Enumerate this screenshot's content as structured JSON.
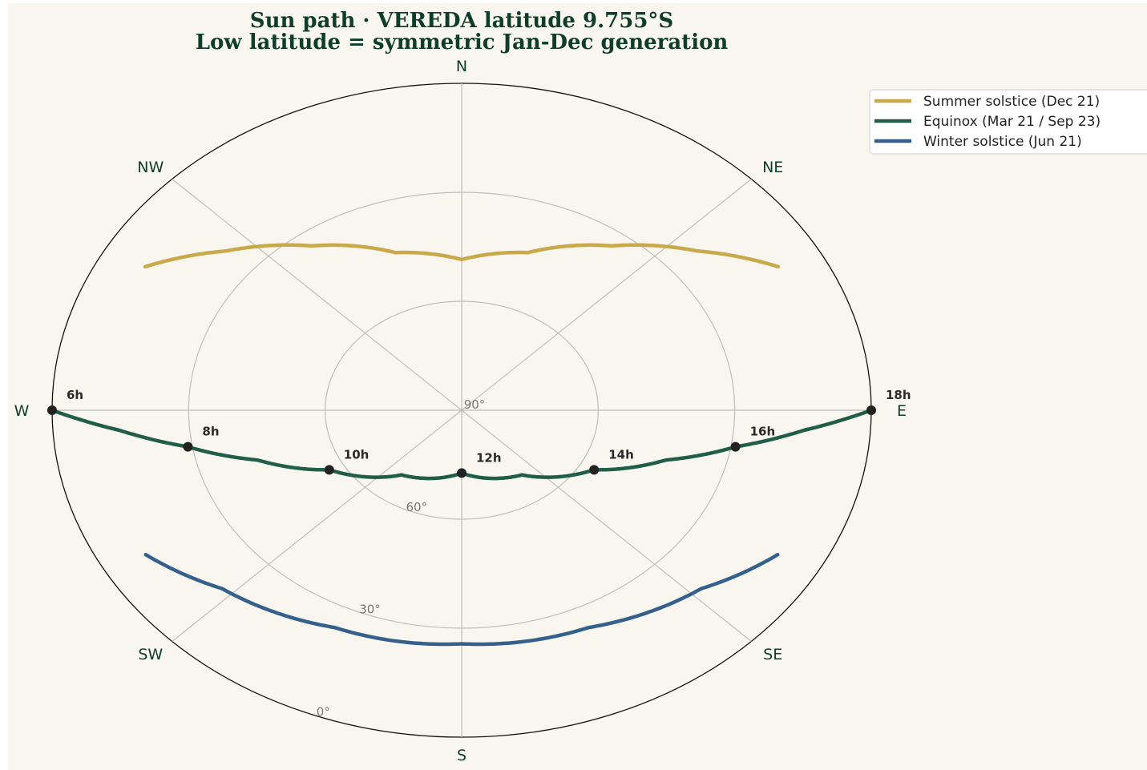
{
  "chart_data": {
    "type": "polar-sunpath",
    "title": "Sun path · VEREDA latitude 9.755°S",
    "subtitle": "Low latitude = symmetric Jan-Dec generation",
    "compass": [
      {
        "label": "N",
        "azimuth": 0
      },
      {
        "label": "NE",
        "azimuth": 45
      },
      {
        "label": "E",
        "azimuth": 90
      },
      {
        "label": "SE",
        "azimuth": 135
      },
      {
        "label": "S",
        "azimuth": 180
      },
      {
        "label": "SW",
        "azimuth": 225
      },
      {
        "label": "W",
        "azimuth": 270
      },
      {
        "label": "NW",
        "azimuth": 315
      }
    ],
    "radial_axis": {
      "quantity": "altitude",
      "range": [
        0,
        90
      ],
      "ticks": [
        {
          "value": 0,
          "label": "0°"
        },
        {
          "value": 30,
          "label": "30°"
        },
        {
          "value": 60,
          "label": "60°"
        },
        {
          "value": 90,
          "label": "90°"
        }
      ]
    },
    "legend": {
      "placement": "top-right"
    },
    "grid": true,
    "series": [
      {
        "name": "Summer solstice (Dec 21)",
        "color": "#c9a94a",
        "points": [
          {
            "az": 299.6,
            "alt": 10.0
          },
          {
            "az": 310.2,
            "alt": 22.1
          },
          {
            "az": 323.9,
            "alt": 34.0
          },
          {
            "az": 341.4,
            "alt": 44.2
          },
          {
            "az": 0.0,
            "alt": 48.5
          },
          {
            "az": 18.6,
            "alt": 44.2
          },
          {
            "az": 36.1,
            "alt": 34.0
          },
          {
            "az": 49.8,
            "alt": 22.1
          },
          {
            "az": 60.4,
            "alt": 10.0
          }
        ]
      },
      {
        "name": "Equinox (Mar 21 / Sep 23)",
        "color": "#205e4a",
        "points": [
          {
            "az": 270.0,
            "alt": 0.0
          },
          {
            "az": 265.8,
            "alt": 14.6
          },
          {
            "az": 260.5,
            "alt": 29.0
          },
          {
            "az": 253.0,
            "alt": 43.1
          },
          {
            "az": 240.6,
            "alt": 56.6
          },
          {
            "az": 216.7,
            "alt": 67.8
          },
          {
            "az": 180.0,
            "alt": 72.7
          },
          {
            "az": 143.3,
            "alt": 67.8
          },
          {
            "az": 119.4,
            "alt": 56.6
          },
          {
            "az": 107.0,
            "alt": 43.1
          },
          {
            "az": 99.5,
            "alt": 29.0
          },
          {
            "az": 94.2,
            "alt": 14.6
          },
          {
            "az": 90.0,
            "alt": 0.0
          }
        ],
        "hour_markers": [
          {
            "label": "6h",
            "az": 270.0,
            "alt": 0.0
          },
          {
            "label": "8h",
            "az": 260.5,
            "alt": 29.0
          },
          {
            "label": "10h",
            "az": 240.6,
            "alt": 56.6
          },
          {
            "label": "12h",
            "az": 180.0,
            "alt": 72.7
          },
          {
            "label": "14h",
            "az": 119.4,
            "alt": 56.6
          },
          {
            "label": "16h",
            "az": 99.5,
            "alt": 29.0
          },
          {
            "label": "18h",
            "az": 90.0,
            "alt": 0.0
          }
        ]
      },
      {
        "name": "Winter solstice (Jun 21)",
        "color": "#35608c",
        "points": [
          {
            "az": 240.2,
            "alt": 10.0
          },
          {
            "az": 227.0,
            "alt": 18.0
          },
          {
            "az": 205.0,
            "alt": 24.0
          },
          {
            "az": 180.0,
            "alt": 25.7
          },
          {
            "az": 155.0,
            "alt": 24.0
          },
          {
            "az": 133.0,
            "alt": 18.0
          },
          {
            "az": 119.8,
            "alt": 10.0
          }
        ]
      }
    ]
  }
}
